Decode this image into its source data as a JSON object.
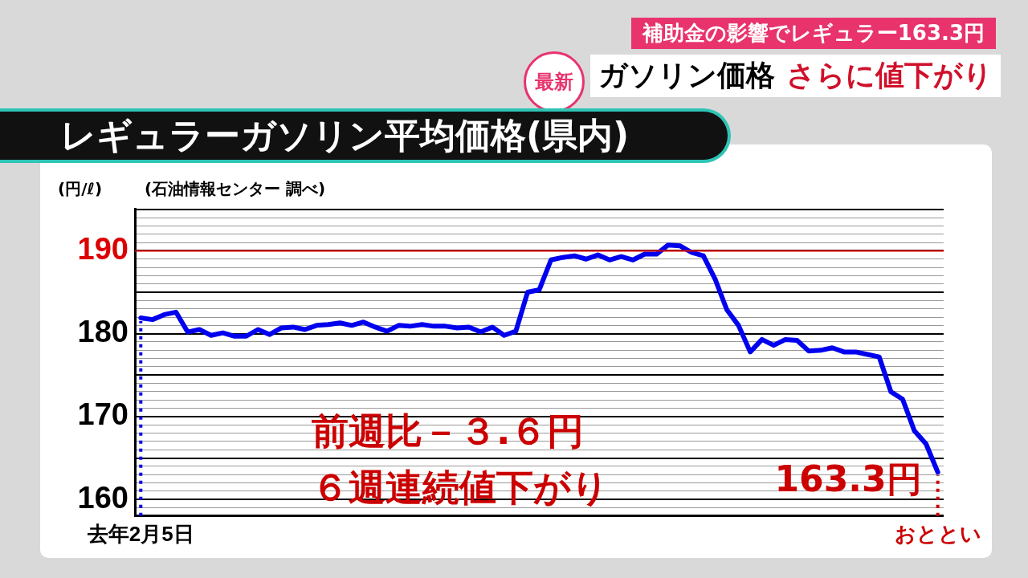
{
  "chart_data": {
    "type": "line",
    "title": "レギュラーガソリン平均価格(県内)",
    "subtitle": "補助金の影響でレギュラー163.3円",
    "ylabel": "(円/ℓ)",
    "annotations": [
      "最新",
      "ガソリン価格",
      "さらに値下がり",
      "(石油情報センター 調べ)",
      "前週比－３.６円",
      "６週連続値下がり",
      {
        "text": "163.3円",
        "x": "おととい",
        "y": 163.3
      }
    ],
    "categories": [
      "去年2月5日",
      null,
      null,
      null,
      null,
      null,
      null,
      null,
      null,
      null,
      null,
      null,
      null,
      null,
      null,
      null,
      null,
      null,
      null,
      null,
      null,
      null,
      null,
      null,
      null,
      null,
      null,
      null,
      null,
      null,
      null,
      null,
      null,
      null,
      null,
      null,
      null,
      null,
      null,
      null,
      null,
      null,
      null,
      null,
      null,
      null,
      null,
      null,
      null,
      null,
      null,
      null,
      null,
      null,
      null,
      null,
      null,
      null,
      null,
      null,
      null,
      null,
      null,
      null,
      null,
      null,
      null,
      null,
      "おととい"
    ],
    "series": [
      {
        "color": "#0000ee",
        "values": [
          181.9,
          181.7,
          182.3,
          182.6,
          180.2,
          180.5,
          179.8,
          180.1,
          179.7,
          179.7,
          180.5,
          179.9,
          180.7,
          180.8,
          180.5,
          181.0,
          181.1,
          181.3,
          181.0,
          181.4,
          180.8,
          180.3,
          181.0,
          180.9,
          181.1,
          180.9,
          180.9,
          180.7,
          180.8,
          180.2,
          180.8,
          179.8,
          180.3,
          185.0,
          185.3,
          188.9,
          189.2,
          189.4,
          189.0,
          189.5,
          188.9,
          189.3,
          188.9,
          189.6,
          189.6,
          190.7,
          190.6,
          189.8,
          189.4,
          186.6,
          182.9,
          181.0,
          177.8,
          179.3,
          178.6,
          179.3,
          179.2,
          177.9,
          178.0,
          178.3,
          177.8,
          177.8,
          177.5,
          177.2,
          173.0,
          172.1,
          168.3,
          166.7,
          163.3
        ]
      }
    ],
    "ylim": [
      158,
      195
    ],
    "yticks": [
      {
        "value": 158,
        "label": null
      },
      {
        "value": 159,
        "label": null
      },
      160,
      {
        "value": 161,
        "label": null
      },
      {
        "value": 162,
        "label": null
      },
      {
        "value": 163,
        "label": null
      },
      {
        "value": 164,
        "label": null
      },
      {
        "value": 165,
        "label": null
      },
      {
        "value": 166,
        "label": null
      },
      {
        "value": 167,
        "label": null
      },
      {
        "value": 168,
        "label": null
      },
      {
        "value": 169,
        "label": null
      },
      170,
      {
        "value": 171,
        "label": null
      },
      {
        "value": 172,
        "label": null
      },
      {
        "value": 173,
        "label": null
      },
      {
        "value": 174,
        "label": null
      },
      {
        "value": 175,
        "label": null
      },
      {
        "value": 176,
        "label": null
      },
      {
        "value": 177,
        "label": null
      },
      {
        "value": 178,
        "label": null
      },
      {
        "value": 179,
        "label": null
      },
      180,
      {
        "value": 181,
        "label": null
      },
      {
        "value": 182,
        "label": null
      },
      {
        "value": 183,
        "label": null
      },
      {
        "value": 184,
        "label": null
      },
      {
        "value": 185,
        "label": null
      },
      {
        "value": 186,
        "label": null
      },
      {
        "value": 187,
        "label": null
      },
      {
        "value": 188,
        "label": null
      },
      {
        "value": 189,
        "label": null
      },
      190,
      {
        "value": 191,
        "label": null
      },
      {
        "value": 192,
        "label": null
      },
      {
        "value": 193,
        "label": null
      },
      {
        "value": 194,
        "label": null
      },
      {
        "value": 195,
        "label": null
      }
    ],
    "ref_lines": [
      {
        "axis": "y",
        "value": 190,
        "color": "#dd0000"
      },
      {
        "axis": "x",
        "value": "去年2月5日",
        "color": "#0000ee",
        "line_style": "dotted"
      },
      {
        "axis": "x",
        "value": "おととい",
        "color": "#cc0000",
        "line_style": "dotted"
      }
    ],
    "grid": "y",
    "legend": false,
    "marker": "none",
    "line_style": "solid"
  }
}
